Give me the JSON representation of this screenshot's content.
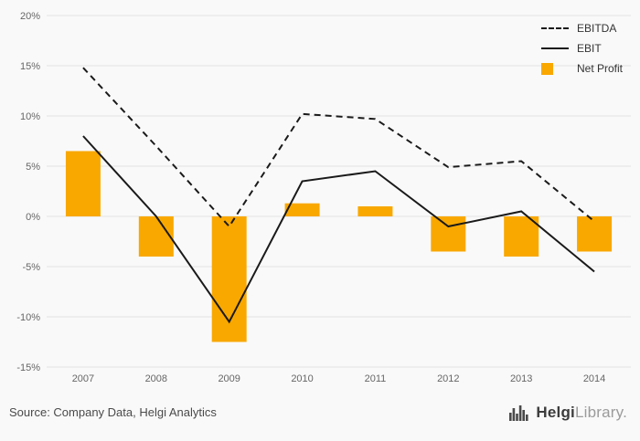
{
  "chart_data": {
    "type": "bar",
    "categories": [
      "2007",
      "2008",
      "2009",
      "2010",
      "2011",
      "2012",
      "2013",
      "2014"
    ],
    "series": [
      {
        "name": "EBITDA",
        "type": "line",
        "style": "dashed",
        "color": "#1a1a1a",
        "values": [
          14.8,
          7.0,
          -1.0,
          10.2,
          9.7,
          4.9,
          5.5,
          -0.5
        ]
      },
      {
        "name": "EBIT",
        "type": "line",
        "style": "solid",
        "color": "#1a1a1a",
        "values": [
          8.0,
          0.0,
          -10.5,
          3.5,
          4.5,
          -1.0,
          0.5,
          -5.5
        ]
      },
      {
        "name": "Net Profit",
        "type": "bar",
        "color": "#F9A800",
        "values": [
          6.5,
          -4.0,
          -12.5,
          1.3,
          1.0,
          -3.5,
          -4.0,
          -3.5
        ]
      }
    ],
    "title": "",
    "xlabel": "",
    "ylabel": "",
    "ylim": [
      -15,
      20
    ],
    "ytick_step": 5,
    "ytick_suffix": "%",
    "grid": true,
    "legend_position": "top-right",
    "grid_color": "#e4e4e4",
    "background_color": "#f9f9f9"
  },
  "footer": {
    "source_text": "Source: Company Data, Helgi Analytics",
    "logo": {
      "bold": "Helgi",
      "light": "Library."
    }
  }
}
